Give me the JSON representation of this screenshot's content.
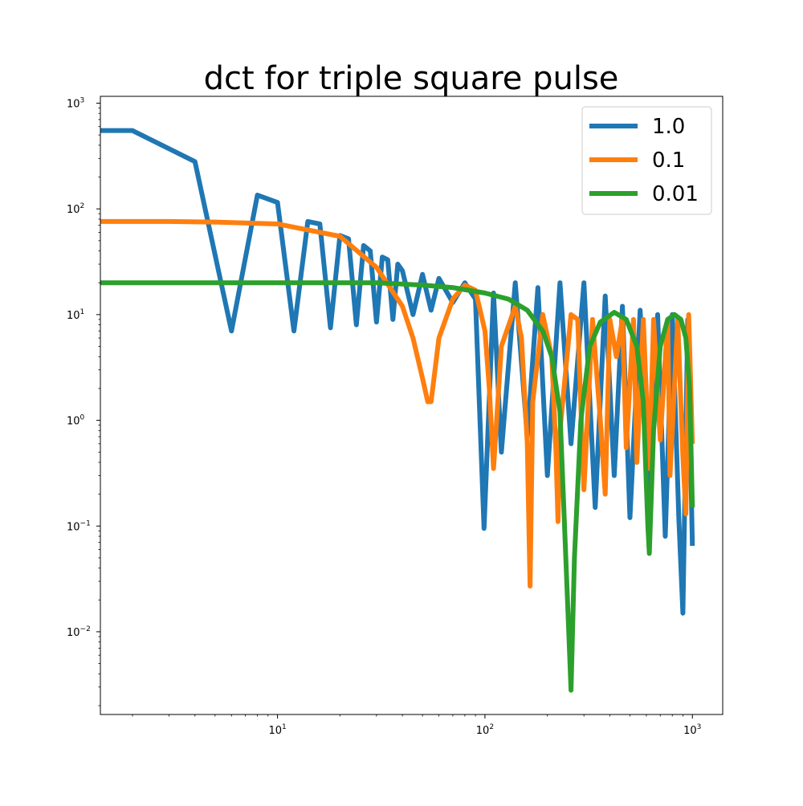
{
  "chart_data": {
    "type": "line",
    "title": "dct for triple square pulse",
    "xlabel": "",
    "ylabel": "",
    "xscale": "log",
    "yscale": "log",
    "xlim": [
      1.4,
      1400
    ],
    "ylim": [
      0.00165,
      1160
    ],
    "grid": false,
    "legend_position": "top-right",
    "x_ticks": [
      {
        "value": 10,
        "base": "10",
        "exp": "1"
      },
      {
        "value": 100,
        "base": "10",
        "exp": "2"
      },
      {
        "value": 1000,
        "base": "10",
        "exp": "3"
      }
    ],
    "y_ticks": [
      {
        "value": 0.01,
        "base": "10",
        "exp": "−2"
      },
      {
        "value": 0.1,
        "base": "10",
        "exp": "−1"
      },
      {
        "value": 1,
        "base": "10",
        "exp": "0"
      },
      {
        "value": 10,
        "base": "10",
        "exp": "1"
      },
      {
        "value": 100,
        "base": "10",
        "exp": "2"
      },
      {
        "value": 1000,
        "base": "10",
        "exp": "3"
      }
    ],
    "series": [
      {
        "name": "1.0",
        "color": "#1f77b4",
        "x": [
          1,
          2,
          4,
          6,
          8,
          10,
          12,
          14,
          16,
          18,
          20,
          22,
          24,
          26,
          28,
          30,
          32,
          34,
          36,
          38,
          40,
          45,
          50,
          55,
          60,
          70,
          80,
          90,
          99,
          110,
          120,
          140,
          160,
          180,
          200,
          230,
          260,
          300,
          340,
          380,
          420,
          460,
          500,
          560,
          620,
          680,
          740,
          800,
          860,
          900,
          950,
          1000
        ],
        "y": [
          550,
          550,
          280,
          7,
          135,
          115,
          7,
          76,
          72,
          7.5,
          56,
          52,
          8,
          45,
          40,
          8.5,
          35,
          33,
          9,
          30,
          26,
          10,
          24,
          11,
          22,
          13,
          20,
          14,
          0.095,
          16,
          0.5,
          20,
          0.7,
          18,
          0.3,
          20,
          0.6,
          20,
          0.15,
          15,
          0.3,
          12,
          0.12,
          11,
          0.2,
          10,
          0.08,
          10,
          0.12,
          0.015,
          9,
          0.065
        ]
      },
      {
        "name": "0.1",
        "color": "#ff7f0e",
        "x": [
          1,
          3,
          5,
          10,
          20,
          30,
          40,
          45,
          50,
          53,
          55,
          60,
          70,
          80,
          90,
          100,
          105,
          110,
          120,
          140,
          150,
          160,
          165,
          170,
          190,
          210,
          220,
          225,
          230,
          260,
          280,
          300,
          330,
          360,
          380,
          400,
          430,
          460,
          480,
          520,
          540,
          580,
          620,
          650,
          700,
          760,
          780,
          850,
          900,
          930,
          960,
          1000
        ],
        "y": [
          76,
          76,
          75,
          72,
          55,
          28,
          12,
          6,
          2.5,
          1.5,
          1.5,
          6,
          14,
          19,
          17,
          7,
          2,
          0.35,
          5,
          12,
          6,
          0.6,
          0.027,
          1.5,
          10,
          4,
          0.5,
          0.11,
          0.8,
          10,
          9,
          0.22,
          9,
          1,
          0.2,
          9,
          4,
          9,
          0.55,
          9,
          0.4,
          9,
          0.35,
          9,
          0.65,
          9,
          0.3,
          9,
          0.45,
          0.13,
          10,
          0.6
        ]
      },
      {
        "name": "0.01",
        "color": "#2ca02c",
        "x": [
          1,
          10,
          30,
          50,
          70,
          100,
          130,
          160,
          190,
          210,
          230,
          250,
          260,
          270,
          290,
          320,
          360,
          420,
          480,
          540,
          580,
          610,
          620,
          650,
          700,
          760,
          820,
          880,
          930,
          970,
          1000
        ],
        "y": [
          20,
          20,
          20,
          19,
          18,
          16,
          14,
          11,
          7,
          4,
          1.2,
          0.02,
          0.0028,
          0.05,
          1,
          5,
          8.5,
          10.5,
          9,
          5,
          1.5,
          0.1,
          0.055,
          0.8,
          5,
          9,
          10,
          9,
          6,
          2,
          0.15
        ]
      }
    ]
  }
}
